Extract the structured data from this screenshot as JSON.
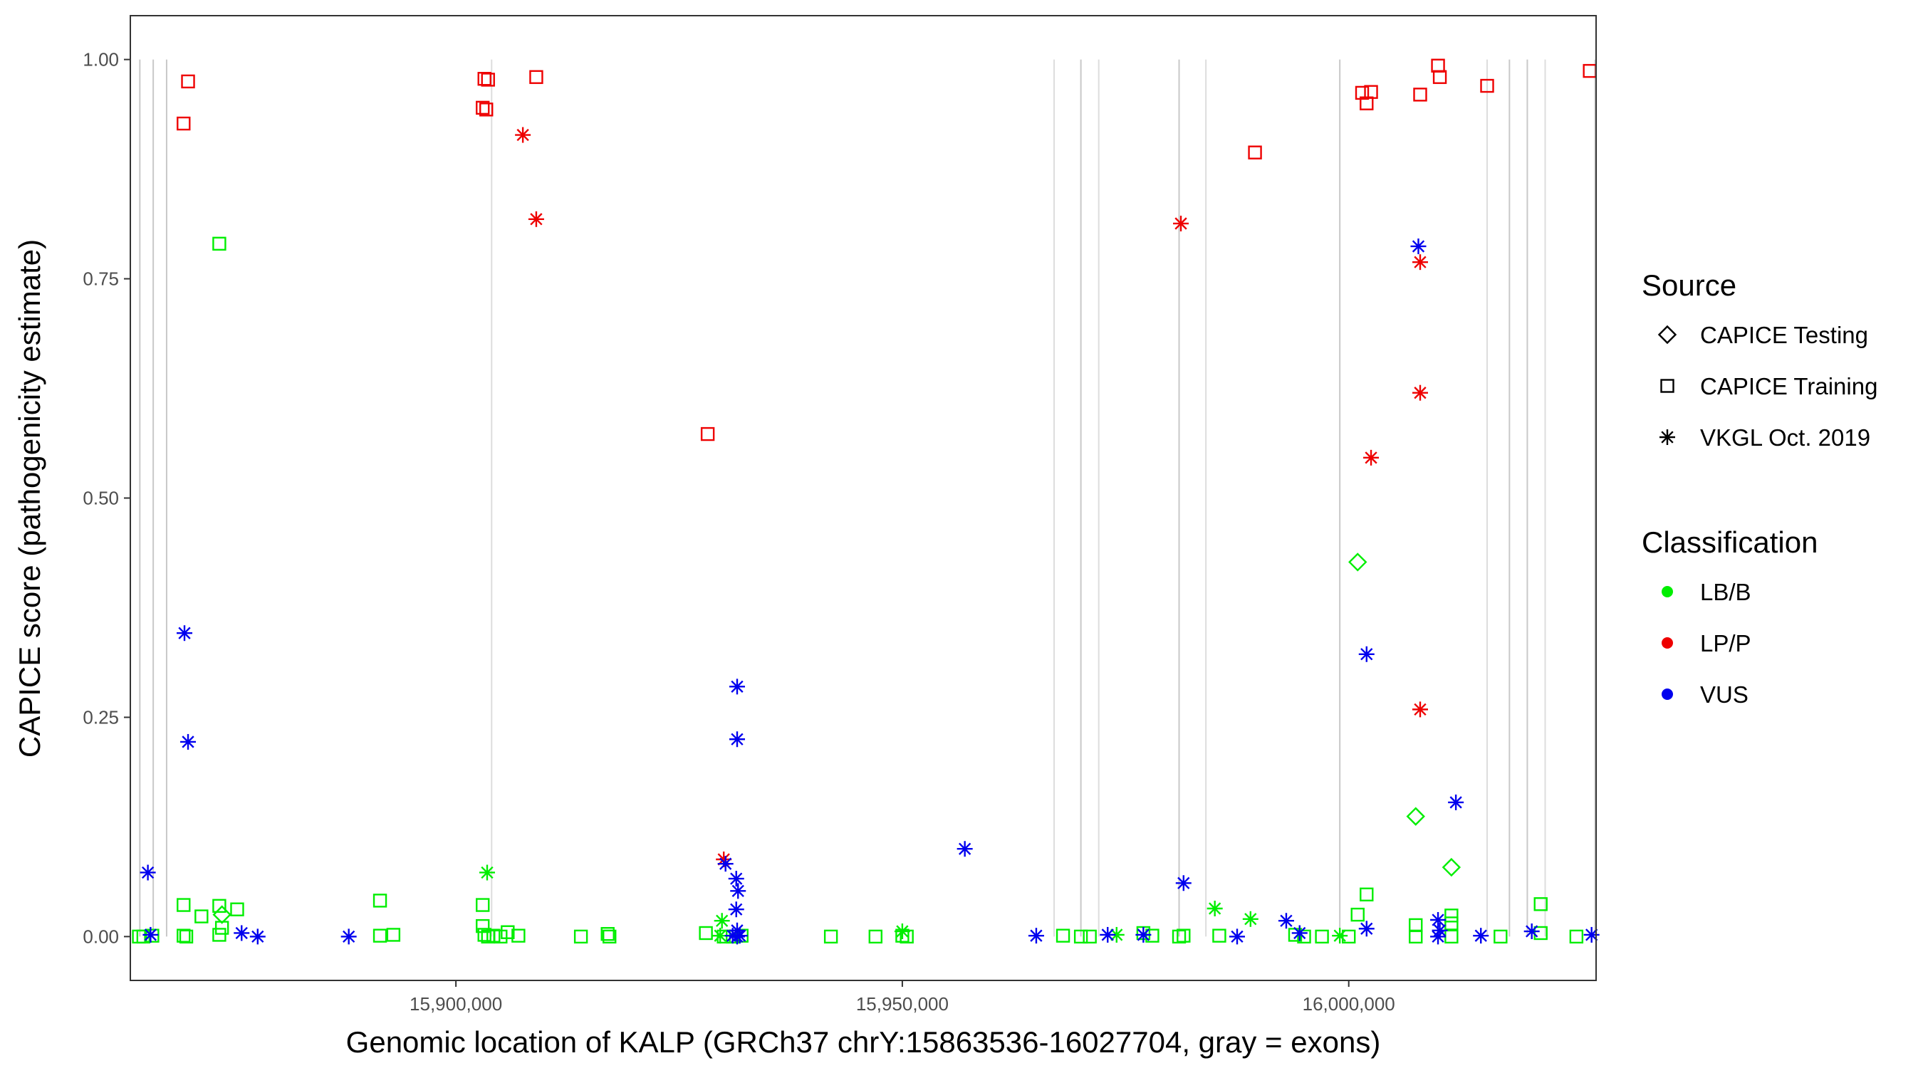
{
  "chart_data": {
    "type": "scatter",
    "xlabel": "Genomic location of KALP (GRCh37 chrY:15863536-16027704, gray = exons)",
    "ylabel": "CAPICE score (pathogenicity estimate)",
    "xlim": [
      15863536,
      16027704
    ],
    "ylim": [
      -0.05,
      1.05
    ],
    "x_ticks": [
      15900000,
      15950000,
      16000000
    ],
    "x_tick_labels": [
      "15,900,000",
      "15,950,000",
      "16,000,000"
    ],
    "y_ticks": [
      0,
      0.25,
      0.5,
      0.75,
      1.0
    ],
    "y_tick_labels": [
      "0.00",
      "0.25",
      "0.50",
      "0.75",
      "1.00"
    ],
    "grid": false,
    "exon_positions": [
      15864600,
      15866100,
      15867600,
      15904000,
      15967000,
      15970000,
      15972000,
      15981000,
      15984000,
      15999000,
      16015500,
      16018000,
      16020000,
      16022000,
      16028000
    ],
    "exon_colors": [
      "#c8c8c8",
      "#c8c8c8",
      "#c8c8c8",
      "#dddddd",
      "#dddddd",
      "#c8c8c8",
      "#dddddd",
      "#c8c8c8",
      "#dddddd",
      "#c8c8c8",
      "#dddddd",
      "#c8c8c8",
      "#c8c8c8",
      "#dddddd",
      "#dddddd"
    ],
    "legends": [
      {
        "title": "Source",
        "placement": "right",
        "entries": [
          {
            "label": "CAPICE Testing",
            "shape": "diamond"
          },
          {
            "label": "CAPICE Training",
            "shape": "square"
          },
          {
            "label": "VKGL Oct. 2019",
            "shape": "asterisk"
          }
        ]
      },
      {
        "title": "Classification",
        "placement": "right",
        "entries": [
          {
            "label": "LB/B",
            "color": "#00ee00"
          },
          {
            "label": "LP/P",
            "color": "#ee0000"
          },
          {
            "label": "VUS",
            "color": "#0000ee"
          }
        ]
      }
    ],
    "colors": {
      "LB/B": "#00ee00",
      "LP/P": "#ee0000",
      "VUS": "#0000ee"
    },
    "series": [
      {
        "source": "CAPICE Training",
        "classification": "LP/P",
        "shape": "square",
        "points": [
          [
            15869500,
            0.927
          ],
          [
            15870000,
            0.975
          ],
          [
            15903200,
            0.978
          ],
          [
            15903600,
            0.977
          ],
          [
            15903000,
            0.945
          ],
          [
            15903400,
            0.943
          ],
          [
            15909000,
            0.98
          ],
          [
            15928200,
            0.573
          ],
          [
            15989500,
            0.894
          ],
          [
            16001500,
            0.962
          ],
          [
            16002500,
            0.963
          ],
          [
            16002000,
            0.95
          ],
          [
            16008000,
            0.96
          ],
          [
            16010000,
            0.993
          ],
          [
            16010200,
            0.98
          ],
          [
            16015500,
            0.97
          ],
          [
            16027000,
            0.987
          ]
        ]
      },
      {
        "source": "VKGL Oct. 2019",
        "classification": "LP/P",
        "shape": "asterisk",
        "points": [
          [
            15907500,
            0.914
          ],
          [
            15909000,
            0.818
          ],
          [
            15930000,
            0.088
          ],
          [
            15981200,
            0.813
          ],
          [
            16008000,
            0.769
          ],
          [
            16008000,
            0.62
          ],
          [
            16002500,
            0.546
          ],
          [
            16008000,
            0.259
          ]
        ]
      },
      {
        "source": "CAPICE Training",
        "classification": "LB/B",
        "shape": "square",
        "points": [
          [
            15864500,
            0.0
          ],
          [
            15865000,
            0.0
          ],
          [
            15866000,
            0.001
          ],
          [
            15869500,
            0.036
          ],
          [
            15869500,
            0.001
          ],
          [
            15869800,
            0.0
          ],
          [
            15871500,
            0.023
          ],
          [
            15873500,
            0.79
          ],
          [
            15873500,
            0.035
          ],
          [
            15873500,
            0.002
          ],
          [
            15873800,
            0.01
          ],
          [
            15875500,
            0.031
          ],
          [
            15891500,
            0.041
          ],
          [
            15891500,
            0.001
          ],
          [
            15893000,
            0.002
          ],
          [
            15903000,
            0.036
          ],
          [
            15903000,
            0.012
          ],
          [
            15903200,
            0.002
          ],
          [
            15903600,
            0.0
          ],
          [
            15904200,
            0.001
          ],
          [
            15905800,
            0.005
          ],
          [
            15905000,
            0.0
          ],
          [
            15907000,
            0.001
          ],
          [
            15914000,
            0.0
          ],
          [
            15917000,
            0.003
          ],
          [
            15917200,
            0.0
          ],
          [
            15928000,
            0.004
          ],
          [
            15930000,
            0.0
          ],
          [
            15931000,
            0.0
          ],
          [
            15932000,
            0.001
          ],
          [
            15942000,
            0.0
          ],
          [
            15947000,
            0.0
          ],
          [
            15950000,
            0.001
          ],
          [
            15950500,
            0.0
          ],
          [
            15968000,
            0.001
          ],
          [
            15970000,
            0.0
          ],
          [
            15971000,
            0.0
          ],
          [
            15977000,
            0.004
          ],
          [
            15978000,
            0.001
          ],
          [
            15981000,
            0.0
          ],
          [
            15981500,
            0.001
          ],
          [
            15985500,
            0.001
          ],
          [
            15994000,
            0.002
          ],
          [
            15995000,
            0.0
          ],
          [
            15997000,
            0.0
          ],
          [
            16000000,
            0.0
          ],
          [
            16001000,
            0.025
          ],
          [
            16002000,
            0.048
          ],
          [
            16007500,
            0.013
          ],
          [
            16007500,
            0.0
          ],
          [
            16011500,
            0.024
          ],
          [
            16011500,
            0.015
          ],
          [
            16011500,
            0.0
          ],
          [
            16017000,
            0.0
          ],
          [
            16021500,
            0.037
          ],
          [
            16021500,
            0.004
          ],
          [
            16025500,
            0.0
          ]
        ]
      },
      {
        "source": "CAPICE Testing",
        "classification": "LB/B",
        "shape": "diamond",
        "points": [
          [
            15873800,
            0.025
          ],
          [
            16001000,
            0.427
          ],
          [
            16007500,
            0.137
          ],
          [
            16011500,
            0.079
          ]
        ]
      },
      {
        "source": "VKGL Oct. 2019",
        "classification": "LB/B",
        "shape": "asterisk",
        "points": [
          [
            15903500,
            0.073
          ],
          [
            15929800,
            0.018
          ],
          [
            15929600,
            0.001
          ],
          [
            15950000,
            0.006
          ],
          [
            15974000,
            0.002
          ],
          [
            15985000,
            0.032
          ],
          [
            15989000,
            0.02
          ],
          [
            15999000,
            0.001
          ]
        ]
      },
      {
        "source": "VKGL Oct. 2019",
        "classification": "VUS",
        "shape": "asterisk",
        "points": [
          [
            15865500,
            0.073
          ],
          [
            15865800,
            0.002
          ],
          [
            15869600,
            0.346
          ],
          [
            15870000,
            0.222
          ],
          [
            15876000,
            0.004
          ],
          [
            15877800,
            0.0
          ],
          [
            15888000,
            0.0
          ],
          [
            15930200,
            0.083
          ],
          [
            15931500,
            0.285
          ],
          [
            15931500,
            0.225
          ],
          [
            15931400,
            0.066
          ],
          [
            15931600,
            0.052
          ],
          [
            15931400,
            0.031
          ],
          [
            15931500,
            0.007
          ],
          [
            15931000,
            0.001
          ],
          [
            15931500,
            0.0
          ],
          [
            15931800,
            0.001
          ],
          [
            15957000,
            0.1
          ],
          [
            15965000,
            0.001
          ],
          [
            15973000,
            0.002
          ],
          [
            15977000,
            0.002
          ],
          [
            15981500,
            0.061
          ],
          [
            15987500,
            0.0
          ],
          [
            15993000,
            0.018
          ],
          [
            15994500,
            0.004
          ],
          [
            16002000,
            0.322
          ],
          [
            16002000,
            0.009
          ],
          [
            16007800,
            0.787
          ],
          [
            16010000,
            0.019
          ],
          [
            16010200,
            0.007
          ],
          [
            16010000,
            0.0
          ],
          [
            16012000,
            0.153
          ],
          [
            16014800,
            0.001
          ],
          [
            16020500,
            0.006
          ],
          [
            16027200,
            0.002
          ]
        ]
      }
    ]
  }
}
